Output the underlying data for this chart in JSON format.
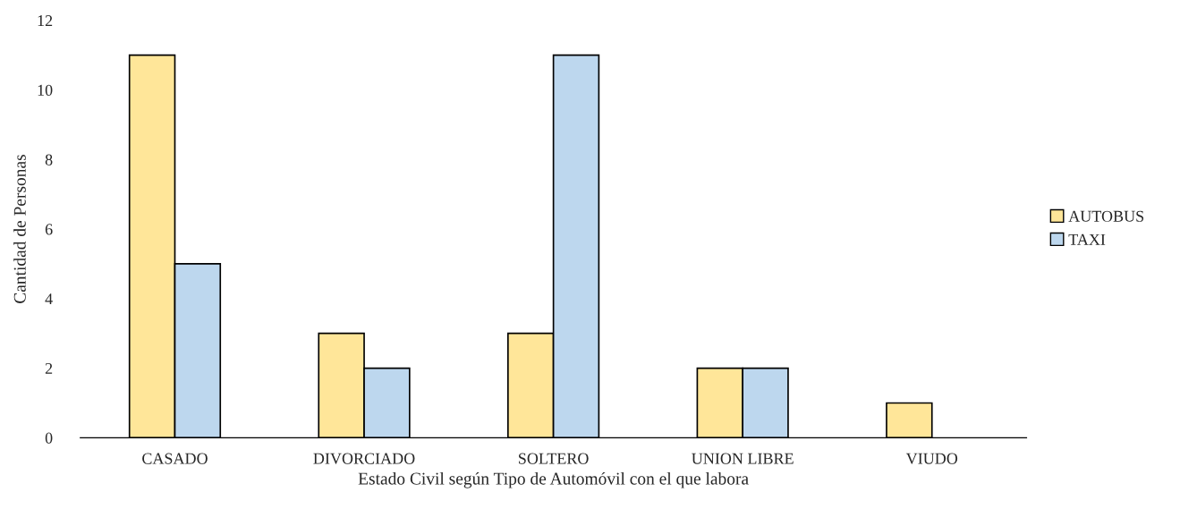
{
  "chart_data": {
    "type": "bar",
    "xlabel": "Estado Civil según Tipo de Automóvil con el que labora",
    "ylabel": "Cantidad de Personas",
    "categories": [
      "CASADO",
      "DIVORCIADO",
      "SOLTERO",
      "UNION LIBRE",
      "VIUDO"
    ],
    "series": [
      {
        "name": "AUTOBUS",
        "color": "#ffe699",
        "values": [
          11,
          3,
          3,
          2,
          1
        ]
      },
      {
        "name": "TAXI",
        "color": "#bdd7ee",
        "values": [
          5,
          2,
          11,
          2,
          null
        ]
      }
    ],
    "ylim": [
      0,
      12
    ],
    "yticks": [
      0,
      2,
      4,
      6,
      8,
      10,
      12
    ],
    "grid": false,
    "legend": "right"
  }
}
